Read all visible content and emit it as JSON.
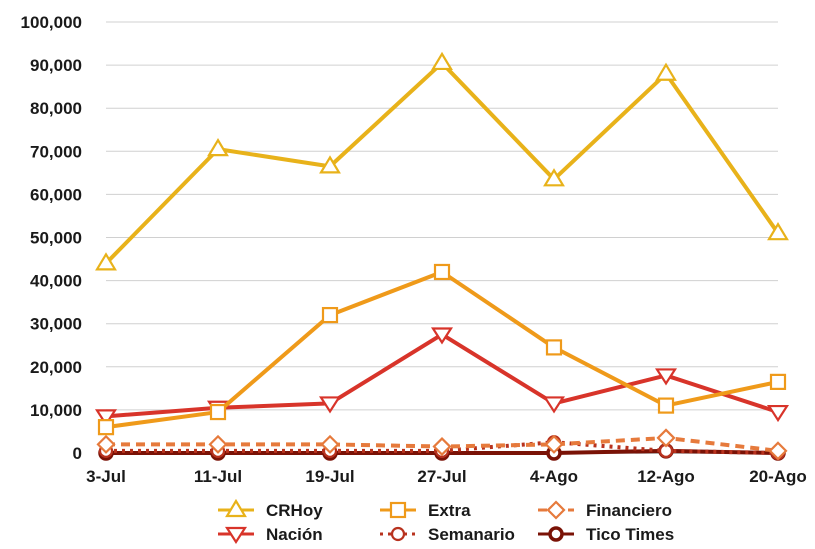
{
  "chart_data": {
    "type": "line",
    "categories": [
      "3-Jul",
      "11-Jul",
      "19-Jul",
      "27-Jul",
      "4-Ago",
      "12-Ago",
      "20-Ago"
    ],
    "ylim": [
      0,
      100000
    ],
    "yticks": [
      "0",
      "10,000",
      "20,000",
      "30,000",
      "40,000",
      "50,000",
      "60,000",
      "70,000",
      "80,000",
      "90,000",
      "100,000"
    ],
    "grid": true,
    "legend_position": "bottom",
    "series": [
      {
        "name": "CRHoy",
        "color": "#e8b21a",
        "marker": "triangle-up",
        "dash": "solid",
        "values": [
          44000,
          70500,
          66500,
          90500,
          63500,
          88000,
          51000
        ]
      },
      {
        "name": "Extra",
        "color": "#ef9a1a",
        "marker": "square",
        "dash": "solid",
        "values": [
          6000,
          9500,
          32000,
          42000,
          24500,
          11000,
          16500
        ]
      },
      {
        "name": "Financiero",
        "color": "#e67a3c",
        "marker": "diamond",
        "dash": "dashed",
        "values": [
          2000,
          2000,
          2000,
          1500,
          2000,
          3500,
          500
        ]
      },
      {
        "name": "Nación",
        "color": "#d8342a",
        "marker": "triangle-down",
        "dash": "solid",
        "values": [
          8500,
          10500,
          11500,
          27500,
          11500,
          18000,
          9500
        ]
      },
      {
        "name": "Semanario",
        "color": "#b8321e",
        "marker": "circle",
        "dash": "dotted",
        "values": [
          500,
          500,
          500,
          500,
          2500,
          500,
          0
        ]
      },
      {
        "name": "Tico Times",
        "color": "#7a1206",
        "marker": "circle-bold",
        "dash": "solid",
        "values": [
          0,
          0,
          0,
          0,
          0,
          500,
          0
        ]
      }
    ]
  }
}
